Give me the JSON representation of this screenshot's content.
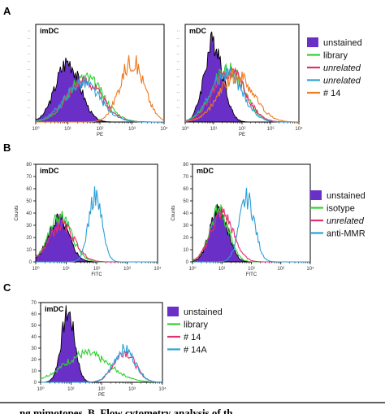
{
  "panels": [
    {
      "label": "A"
    },
    {
      "label": "B"
    },
    {
      "label": "C"
    }
  ],
  "legends": [
    {
      "items": [
        {
          "text": "unstained",
          "color": "#6a2fc7",
          "kind": "box",
          "italic": false
        },
        {
          "text": "library",
          "color": "#2ed12e",
          "kind": "line",
          "italic": false
        },
        {
          "text": "unrelated",
          "color": "#e0306e",
          "kind": "line",
          "italic": true
        },
        {
          "text": "unrelated",
          "color": "#2a9fd8",
          "kind": "line",
          "italic": true
        },
        {
          "text": "# 14",
          "color": "#f07a1e",
          "kind": "line",
          "italic": false
        }
      ]
    },
    {
      "items": [
        {
          "text": "unstained",
          "color": "#6a2fc7",
          "kind": "box",
          "italic": false
        },
        {
          "text": "isotype",
          "color": "#2ed12e",
          "kind": "line",
          "italic": false
        },
        {
          "text": "unrelated",
          "color": "#e0306e",
          "kind": "line",
          "italic": true
        },
        {
          "text": "anti-MMR",
          "color": "#2a9fd8",
          "kind": "line",
          "italic": false
        }
      ]
    },
    {
      "items": [
        {
          "text": "unstained",
          "color": "#6a2fc7",
          "kind": "box",
          "italic": false
        },
        {
          "text": "library",
          "color": "#2ed12e",
          "kind": "line",
          "italic": false
        },
        {
          "text": "# 14",
          "color": "#e0306e",
          "kind": "line",
          "italic": false
        },
        {
          "text": "# 14A",
          "color": "#2a9fd8",
          "kind": "line",
          "italic": false
        }
      ]
    }
  ],
  "caption": "ng mimotopes. B. Flow cytometry analysis of th",
  "chart_data": [
    {
      "type": "area",
      "panel": "A",
      "title": "imDC",
      "xlabel": "PE",
      "ylabel": "",
      "xscale": "log",
      "xlim": [
        1,
        10000
      ],
      "x_ticks": [
        "10⁰",
        "10¹",
        "10²",
        "10³",
        "10⁴"
      ],
      "show_y_ticks": false,
      "series": [
        {
          "name": "unstained",
          "color": "#6a2fc7",
          "fill": true,
          "peak_log10": 1.0,
          "width": 0.38,
          "height": 0.62
        },
        {
          "name": "library",
          "color": "#2ed12e",
          "fill": false,
          "peak_log10": 1.55,
          "width": 0.55,
          "height": 0.45
        },
        {
          "name": "unrelated",
          "color": "#e0306e",
          "fill": false,
          "peak_log10": 1.5,
          "width": 0.55,
          "height": 0.42
        },
        {
          "name": "unrelated",
          "color": "#2a9fd8",
          "fill": false,
          "peak_log10": 1.45,
          "width": 0.55,
          "height": 0.4
        },
        {
          "name": "# 14",
          "color": "#f07a1e",
          "fill": false,
          "peak_log10": 3.0,
          "width": 0.38,
          "height": 0.62
        }
      ]
    },
    {
      "type": "area",
      "panel": "A",
      "title": "mDC",
      "xlabel": "PE",
      "ylabel": "",
      "xscale": "log",
      "xlim": [
        1,
        10000
      ],
      "x_ticks": [
        "10⁰",
        "10¹",
        "10²",
        "10³",
        "10⁴"
      ],
      "show_y_ticks": false,
      "series": [
        {
          "name": "unstained",
          "color": "#6a2fc7",
          "fill": true,
          "peak_log10": 1.0,
          "width": 0.33,
          "height": 0.82
        },
        {
          "name": "library",
          "color": "#2ed12e",
          "fill": false,
          "peak_log10": 1.5,
          "width": 0.55,
          "height": 0.55
        },
        {
          "name": "unrelated",
          "color": "#e0306e",
          "fill": false,
          "peak_log10": 1.55,
          "width": 0.55,
          "height": 0.52
        },
        {
          "name": "unrelated",
          "color": "#2a9fd8",
          "fill": false,
          "peak_log10": 1.45,
          "width": 0.55,
          "height": 0.5
        },
        {
          "name": "# 14",
          "color": "#f07a1e",
          "fill": false,
          "peak_log10": 1.8,
          "width": 0.6,
          "height": 0.48
        }
      ]
    },
    {
      "type": "area",
      "panel": "B",
      "title": "imDC",
      "xlabel": "FITC",
      "ylabel": "Counts",
      "xscale": "log",
      "xlim": [
        1,
        10000
      ],
      "ylim": [
        0,
        80
      ],
      "x_ticks": [
        "10⁰",
        "10¹",
        "10²",
        "10³",
        "10⁴"
      ],
      "y_ticks": [
        "0",
        "10",
        "20",
        "30",
        "40",
        "50",
        "60",
        "70",
        "80"
      ],
      "show_y_ticks": true,
      "series": [
        {
          "name": "unstained",
          "color": "#6a2fc7",
          "fill": true,
          "peak_log10": 0.75,
          "width": 0.34,
          "height": 35
        },
        {
          "name": "isotype",
          "color": "#2ed12e",
          "fill": false,
          "peak_log10": 0.8,
          "width": 0.38,
          "height": 37
        },
        {
          "name": "unrelated",
          "color": "#e0306e",
          "fill": false,
          "peak_log10": 0.85,
          "width": 0.42,
          "height": 30
        },
        {
          "name": "anti-MMR",
          "color": "#2a9fd8",
          "fill": false,
          "peak_log10": 1.95,
          "width": 0.22,
          "height": 54
        }
      ]
    },
    {
      "type": "area",
      "panel": "B",
      "title": "mDC",
      "xlabel": "FITC",
      "ylabel": "Counts",
      "xscale": "log",
      "xlim": [
        1,
        10000
      ],
      "ylim": [
        0,
        80
      ],
      "x_ticks": [
        "10⁰",
        "10¹",
        "10²",
        "10³",
        "10⁴"
      ],
      "y_ticks": [
        "0",
        "10",
        "20",
        "30",
        "40",
        "50",
        "60",
        "70",
        "80"
      ],
      "show_y_ticks": true,
      "series": [
        {
          "name": "unstained",
          "color": "#6a2fc7",
          "fill": true,
          "peak_log10": 0.9,
          "width": 0.3,
          "height": 44
        },
        {
          "name": "isotype",
          "color": "#2ed12e",
          "fill": false,
          "peak_log10": 0.9,
          "width": 0.33,
          "height": 42
        },
        {
          "name": "unrelated",
          "color": "#e0306e",
          "fill": false,
          "peak_log10": 1.0,
          "width": 0.38,
          "height": 40
        },
        {
          "name": "anti-MMR",
          "color": "#2a9fd8",
          "fill": false,
          "peak_log10": 1.85,
          "width": 0.26,
          "height": 52
        }
      ]
    },
    {
      "type": "area",
      "panel": "C",
      "title": "imDC",
      "xlabel": "PE",
      "ylabel": "",
      "xscale": "log",
      "xlim": [
        1,
        10000
      ],
      "ylim": [
        0,
        70
      ],
      "x_ticks": [
        "10⁰",
        "10¹",
        "10²",
        "10³",
        "10⁴"
      ],
      "y_ticks": [
        "0",
        "10",
        "20",
        "30",
        "40",
        "50",
        "60",
        "70"
      ],
      "show_y_ticks": true,
      "series": [
        {
          "name": "unstained",
          "color": "#6a2fc7",
          "fill": true,
          "peak_log10": 0.9,
          "width": 0.22,
          "height": 61
        },
        {
          "name": "library",
          "color": "#2ed12e",
          "fill": false,
          "peak_log10": 1.5,
          "width": 0.75,
          "height": 25
        },
        {
          "name": "# 14",
          "color": "#e0306e",
          "fill": false,
          "peak_log10": 2.75,
          "width": 0.35,
          "height": 27
        },
        {
          "name": "# 14A",
          "color": "#2a9fd8",
          "fill": false,
          "peak_log10": 2.75,
          "width": 0.35,
          "height": 29
        }
      ]
    }
  ]
}
